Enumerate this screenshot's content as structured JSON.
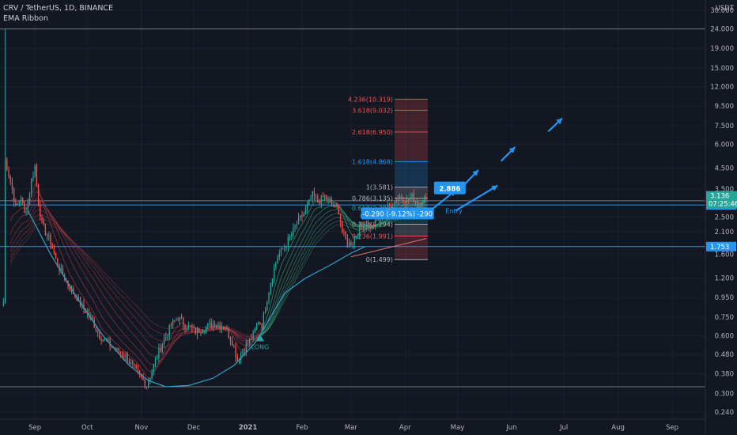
{
  "header": {
    "symbol_line": "CRV / TetherUS, 1D, BINANCE",
    "indicator": "EMA Ribbon"
  },
  "colors": {
    "background": "#131722",
    "bull": "#26a69a",
    "bear": "#ef5350",
    "hline": "#2196f3",
    "fib": "#2196f3",
    "ribbon_green": "#3fa877",
    "ribbon_red": "#c0424a",
    "arrow": "#2196f3",
    "price_tag": "#26a69a"
  },
  "chart_data": {
    "type": "candlestick",
    "yscale": "log",
    "ylim": [
      0.22,
      34
    ],
    "xlim": [
      "2020-08-12",
      "2021-09-20"
    ],
    "y_currency": "USDT",
    "y_ticks": [
      "36.000",
      "30.000",
      "24.000",
      "19.000",
      "15.000",
      "12.000",
      "9.500",
      "7.500",
      "6.000",
      "4.500",
      "3.500",
      "2.500",
      "2.100",
      "1.600",
      "1.200",
      "0.950",
      "0.750",
      "0.600",
      "0.480",
      "0.380",
      "0.300",
      "0.240"
    ],
    "x_ticks": [
      {
        "label": "Sep",
        "date": "2020-09-01"
      },
      {
        "label": "Oct",
        "date": "2020-10-01"
      },
      {
        "label": "Nov",
        "date": "2020-11-01"
      },
      {
        "label": "Dec",
        "date": "2020-12-01"
      },
      {
        "label": "2021",
        "date": "2021-01-01"
      },
      {
        "label": "Feb",
        "date": "2021-02-01"
      },
      {
        "label": "Mar",
        "date": "2021-03-01"
      },
      {
        "label": "Apr",
        "date": "2021-04-01"
      },
      {
        "label": "May",
        "date": "2021-05-01"
      },
      {
        "label": "Jun",
        "date": "2021-06-01"
      },
      {
        "label": "Jul",
        "date": "2021-07-01"
      },
      {
        "label": "Aug",
        "date": "2021-08-01"
      },
      {
        "label": "Sep",
        "date": "2021-09-01"
      }
    ],
    "price_path": [
      [
        "2020-08-14",
        0.9
      ],
      [
        "2020-08-15",
        5.0
      ],
      [
        "2020-08-17",
        4.2
      ],
      [
        "2020-08-19",
        3.5
      ],
      [
        "2020-08-21",
        2.8
      ],
      [
        "2020-08-24",
        3.2
      ],
      [
        "2020-08-26",
        2.6
      ],
      [
        "2020-08-28",
        3.0
      ],
      [
        "2020-08-30",
        3.9
      ],
      [
        "2020-09-01",
        4.6
      ],
      [
        "2020-09-03",
        3.0
      ],
      [
        "2020-09-05",
        2.3
      ],
      [
        "2020-09-08",
        2.0
      ],
      [
        "2020-09-10",
        1.85
      ],
      [
        "2020-09-13",
        1.5
      ],
      [
        "2020-09-16",
        1.3
      ],
      [
        "2020-09-20",
        1.1
      ],
      [
        "2020-09-25",
        0.95
      ],
      [
        "2020-09-28",
        0.85
      ],
      [
        "2020-10-03",
        0.75
      ],
      [
        "2020-10-08",
        0.6
      ],
      [
        "2020-10-13",
        0.55
      ],
      [
        "2020-10-18",
        0.5
      ],
      [
        "2020-10-23",
        0.47
      ],
      [
        "2020-10-28",
        0.4
      ],
      [
        "2020-11-01",
        0.36
      ],
      [
        "2020-11-04",
        0.33
      ],
      [
        "2020-11-08",
        0.42
      ],
      [
        "2020-11-13",
        0.55
      ],
      [
        "2020-11-18",
        0.68
      ],
      [
        "2020-11-22",
        0.75
      ],
      [
        "2020-11-26",
        0.68
      ],
      [
        "2020-12-02",
        0.63
      ],
      [
        "2020-12-08",
        0.67
      ],
      [
        "2020-12-14",
        0.7
      ],
      [
        "2020-12-19",
        0.66
      ],
      [
        "2020-12-23",
        0.56
      ],
      [
        "2020-12-26",
        0.45
      ],
      [
        "2020-12-29",
        0.5
      ],
      [
        "2021-01-01",
        0.55
      ],
      [
        "2021-01-04",
        0.6
      ],
      [
        "2021-01-07",
        0.72
      ],
      [
        "2021-01-09",
        0.68
      ],
      [
        "2021-01-12",
        0.95
      ],
      [
        "2021-01-15",
        1.25
      ],
      [
        "2021-01-18",
        1.55
      ],
      [
        "2021-01-21",
        1.7
      ],
      [
        "2021-01-25",
        1.95
      ],
      [
        "2021-01-29",
        2.3
      ],
      [
        "2021-02-03",
        2.7
      ],
      [
        "2021-02-07",
        3.25
      ],
      [
        "2021-02-10",
        3.0
      ],
      [
        "2021-02-14",
        3.2
      ],
      [
        "2021-02-18",
        2.9
      ],
      [
        "2021-02-22",
        2.7
      ],
      [
        "2021-02-24",
        2.1
      ],
      [
        "2021-02-27",
        1.8
      ],
      [
        "2021-03-02",
        1.85
      ],
      [
        "2021-03-05",
        2.1
      ],
      [
        "2021-03-09",
        2.35
      ],
      [
        "2021-03-13",
        2.2
      ],
      [
        "2021-03-17",
        2.45
      ],
      [
        "2021-03-21",
        2.7
      ],
      [
        "2021-03-25",
        2.95
      ],
      [
        "2021-03-29",
        3.2
      ],
      [
        "2021-04-02",
        3.05
      ],
      [
        "2021-04-05",
        3.2
      ],
      [
        "2021-04-08",
        2.9
      ],
      [
        "2021-04-11",
        3.1
      ],
      [
        "2021-04-13",
        3.136
      ]
    ],
    "ribbon": {
      "count": 8,
      "green_after": "2021-01-08"
    },
    "hlines": [
      {
        "price": 2.892,
        "label": "2.892",
        "color": "#2196f3"
      },
      {
        "price": 1.753,
        "label": "1.753",
        "color": "#2196f3"
      },
      {
        "price": 3.04,
        "label": "",
        "color": "#b2b5be"
      },
      {
        "price": 24.0,
        "label": "",
        "color": "#b2b5be"
      },
      {
        "price": 0.325,
        "label": "",
        "color": "#b2b5be"
      }
    ],
    "fib": {
      "from": "2021-03-26",
      "to": "2021-04-14",
      "levels": [
        {
          "label": "4.236(10.319)",
          "price": 10.319,
          "color": "#ef5350"
        },
        {
          "label": "3.618(9.032)",
          "price": 9.032,
          "color": "#ef5350"
        },
        {
          "label": "2.618(6.950)",
          "price": 6.95,
          "color": "#ef5350"
        },
        {
          "label": "1.618(4.868)",
          "price": 4.868,
          "color": "#2196f3"
        },
        {
          "label": "1(3.581)",
          "price": 3.581,
          "color": "#b2b5be"
        },
        {
          "label": "0.786(3.135)",
          "price": 3.135,
          "color": "#b2b5be"
        },
        {
          "label": "0.618(2.785)",
          "price": 2.785,
          "color": "#26a69a"
        },
        {
          "label": "0.5(2.540)",
          "price": 2.54,
          "color": "#26a69a"
        },
        {
          "label": "0.382(2.294)",
          "price": 2.294,
          "color": "#b2b5be"
        },
        {
          "label": "0.236(1.991)",
          "price": 1.991,
          "color": "#ef5350"
        },
        {
          "label": "0(1.499)",
          "price": 1.499,
          "color": "#b2b5be"
        }
      ]
    },
    "curve": {
      "points": [
        [
          "2020-08-28",
          2.7
        ],
        [
          "2020-09-10",
          1.6
        ],
        [
          "2020-09-25",
          0.95
        ],
        [
          "2020-10-10",
          0.6
        ],
        [
          "2020-10-25",
          0.42
        ],
        [
          "2020-11-05",
          0.35
        ],
        [
          "2020-11-15",
          0.325
        ],
        [
          "2020-11-28",
          0.33
        ],
        [
          "2020-12-12",
          0.36
        ],
        [
          "2020-12-24",
          0.42
        ],
        [
          "2021-01-05",
          0.55
        ],
        [
          "2021-01-14",
          0.75
        ],
        [
          "2021-01-22",
          1.0
        ],
        [
          "2021-02-03",
          1.2
        ],
        [
          "2021-02-17",
          1.4
        ],
        [
          "2021-03-01",
          1.62
        ],
        [
          "2021-03-09",
          1.75
        ]
      ]
    },
    "annotations": {
      "long_label": "LONG",
      "long_date": "2021-01-08",
      "long_price": 0.6,
      "entry_label": "Entry",
      "entry_date": "2021-04-29",
      "entry_price": 2.62,
      "target_tag": "2.886",
      "target_tag_date": "2021-04-28",
      "target_tag_price": 3.55,
      "measure_text": "-0.290 (-9.12%) -290",
      "measure_date": "2021-04-03",
      "measure_price": 2.6,
      "current_price": "3.136",
      "countdown": "07:25:46",
      "arrows": [
        {
          "from": [
            "2021-04-16",
            2.72
          ],
          "to": [
            "2021-04-30",
            3.45
          ]
        },
        {
          "from": [
            "2021-04-30",
            2.7
          ],
          "to": [
            "2021-05-24",
            3.65
          ]
        },
        {
          "from": [
            "2021-05-05",
            3.7
          ],
          "to": [
            "2021-05-13",
            4.4
          ]
        },
        {
          "from": [
            "2021-05-26",
            4.9
          ],
          "to": [
            "2021-06-03",
            5.8
          ]
        },
        {
          "from": [
            "2021-06-22",
            7.0
          ],
          "to": [
            "2021-06-30",
            8.2
          ]
        }
      ],
      "trend_line": {
        "from": [
          "2021-03-01",
          1.55
        ],
        "to": [
          "2021-04-13",
          1.93
        ]
      }
    }
  }
}
